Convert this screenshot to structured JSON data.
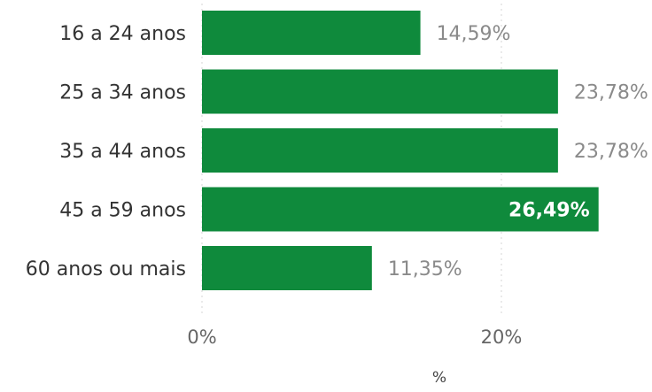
{
  "chart_data": {
    "type": "bar",
    "orientation": "horizontal",
    "categories": [
      "16 a 24 anos",
      "25 a 34 anos",
      "35 a 44 anos",
      "45 a 59 anos",
      "60 anos ou mais"
    ],
    "values": [
      14.59,
      23.78,
      23.78,
      26.49,
      11.35
    ],
    "value_labels": [
      "14,59%",
      "23,78%",
      "23,78%",
      "26,49%",
      "11,35%"
    ],
    "x_ticks": [
      {
        "value": 0,
        "label": "0%"
      },
      {
        "value": 20,
        "label": "20%"
      }
    ],
    "xlabel": "%",
    "ylabel": "",
    "title": "",
    "xlim": [
      0,
      30
    ],
    "grid": true,
    "colors": {
      "bar": "#0f8a3c",
      "label_outside": "#8a8a8a",
      "label_inside": "#ffffff"
    }
  }
}
